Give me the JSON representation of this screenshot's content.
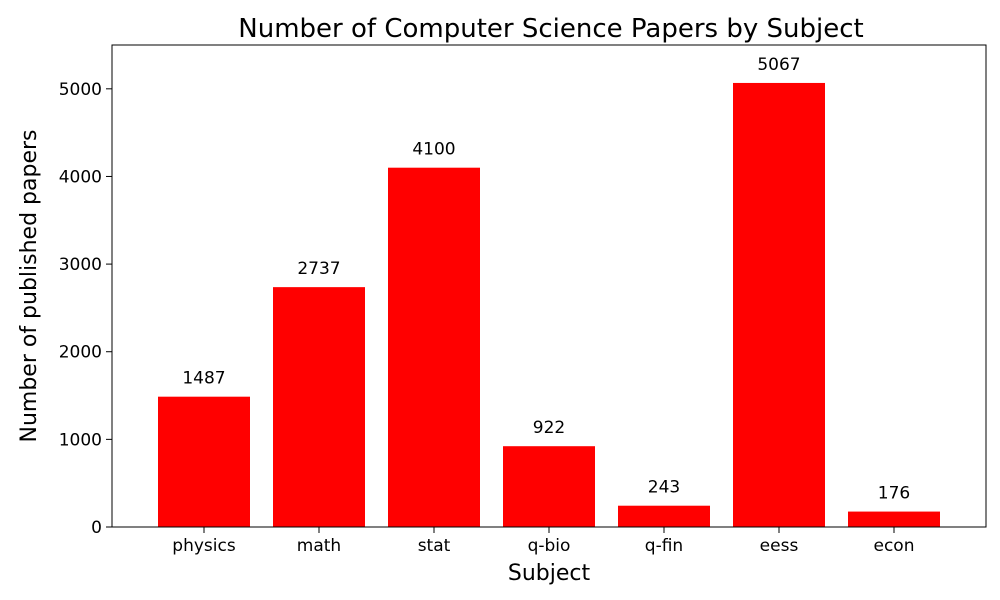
{
  "chart_data": {
    "type": "bar",
    "title": "Number of Computer Science Papers by Subject",
    "xlabel": "Subject",
    "ylabel": "Number of published papers",
    "categories": [
      "physics",
      "math",
      "stat",
      "q-bio",
      "q-fin",
      "eess",
      "econ"
    ],
    "values": [
      1487,
      2737,
      4100,
      922,
      243,
      5067,
      176
    ],
    "ylim": [
      0,
      5500
    ],
    "yticks": [
      0,
      1000,
      2000,
      3000,
      4000,
      5000
    ],
    "bar_color": "#ff0000",
    "grid": false,
    "legend": "none"
  }
}
